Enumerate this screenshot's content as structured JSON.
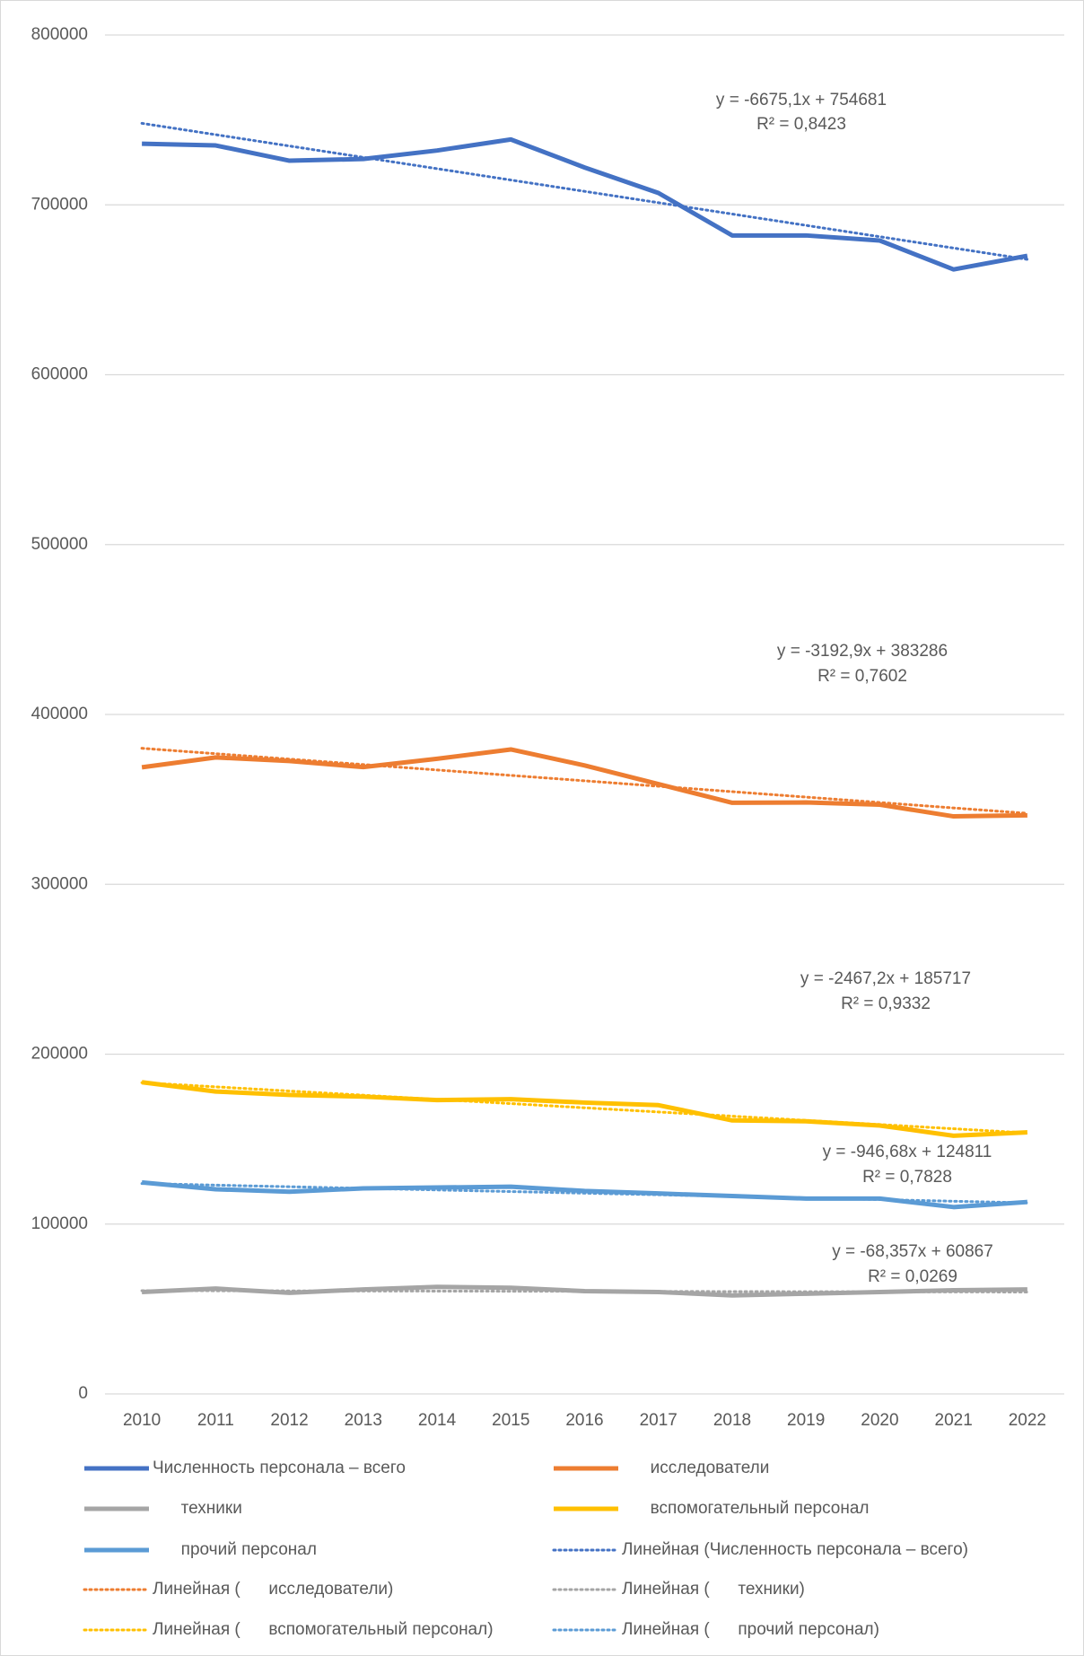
{
  "chart_data": {
    "type": "line",
    "categories": [
      "2010",
      "2011",
      "2012",
      "2013",
      "2014",
      "2015",
      "2016",
      "2017",
      "2018",
      "2019",
      "2020",
      "2021",
      "2022"
    ],
    "ylim": [
      0,
      800000
    ],
    "yticks": [
      0,
      100000,
      200000,
      300000,
      400000,
      500000,
      600000,
      700000,
      800000
    ],
    "grid": true,
    "legend": "bottom",
    "series": [
      {
        "name": "Численность персонала – всего",
        "color": "#4472c4",
        "values": [
          736000,
          735000,
          726000,
          727000,
          732000,
          738500,
          722000,
          707000,
          682000,
          682000,
          679000,
          662000,
          670000
        ],
        "trend": {
          "name": "Линейная (Численность персонала – всего)",
          "slope": -6675.1,
          "intercept": 754681,
          "r2": 0.8423,
          "label": "y = -6675,1x + 754681",
          "r2_label": "R² = 0,8423"
        }
      },
      {
        "name": "      исследователи",
        "color": "#ed7d31",
        "values": [
          368900,
          374700,
          372600,
          369000,
          373900,
          379400,
          370000,
          359000,
          348000,
          348200,
          346900,
          340000,
          340600
        ],
        "trend": {
          "name": "Линейная (      исследователи)",
          "slope": -3192.9,
          "intercept": 383286,
          "r2": 0.7602,
          "label": "y = -3192,9x + 383286",
          "r2_label": "R² = 0,7602"
        }
      },
      {
        "name": "      техники",
        "color": "#a5a5a5",
        "values": [
          60000,
          62000,
          59500,
          61500,
          63000,
          62500,
          60500,
          60000,
          58000,
          59000,
          60000,
          61000,
          61500
        ],
        "trend": {
          "name": "Линейная (      техники)",
          "slope": -68.357,
          "intercept": 60867,
          "r2": 0.0269,
          "label": "y = -68,357x + 60867",
          "r2_label": "R² = 0,0269"
        }
      },
      {
        "name": "      вспомогательный персонал",
        "color": "#ffc000",
        "values": [
          183500,
          178000,
          176000,
          175000,
          173000,
          173500,
          171500,
          170000,
          161000,
          160500,
          158000,
          152000,
          154000
        ],
        "trend": {
          "name": "Линейная (      вспомогательный персонал)",
          "slope": -2467.2,
          "intercept": 185717,
          "r2": 0.9332,
          "label": "y = -2467,2x + 185717",
          "r2_label": "R² = 0,9332"
        }
      },
      {
        "name": "      прочий персонал",
        "color": "#5b9bd5",
        "values": [
          124500,
          120500,
          119000,
          121000,
          121500,
          122000,
          119500,
          118000,
          116500,
          115000,
          115000,
          110000,
          113000
        ],
        "trend": {
          "name": "Линейная (      прочий персонал)",
          "slope": -946.68,
          "intercept": 124811,
          "r2": 0.7828,
          "label": "y = -946,68x + 124811",
          "r2_label": "R² = 0,7828"
        }
      }
    ]
  }
}
